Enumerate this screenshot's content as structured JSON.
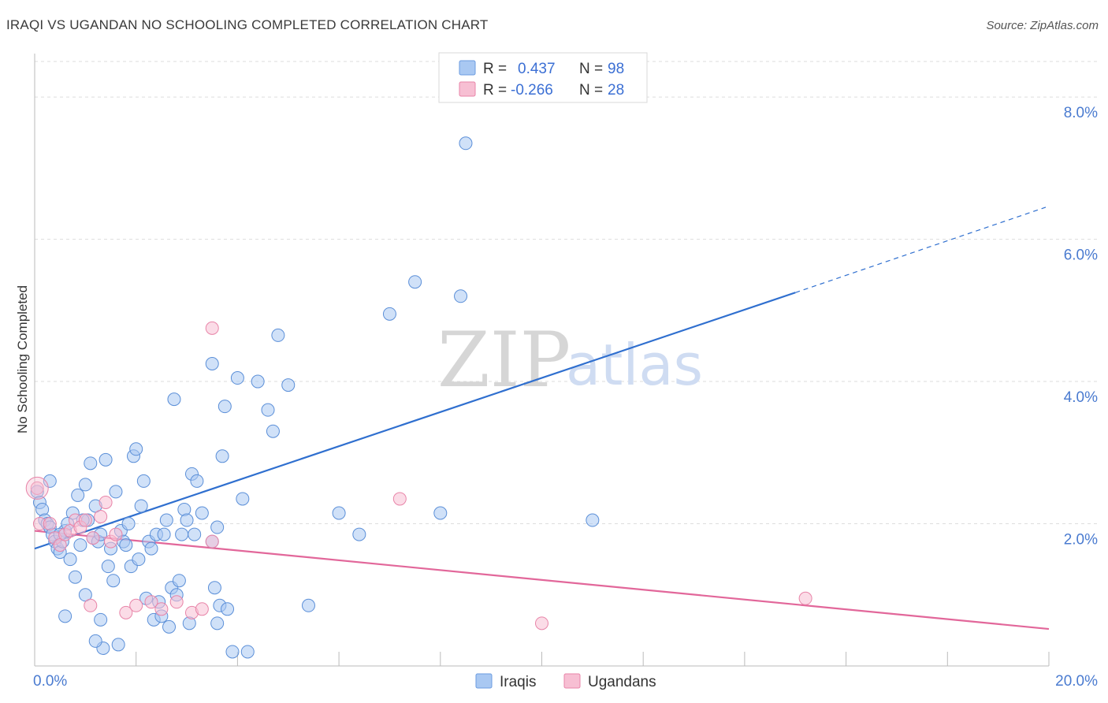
{
  "title": "IRAQI VS UGANDAN NO SCHOOLING COMPLETED CORRELATION CHART",
  "source": "Source: ZipAtlas.com",
  "watermark": {
    "zip": "ZIP",
    "atlas": "atlas"
  },
  "legend": {
    "rows": [
      {
        "r_label": "R =",
        "r_value": "0.437",
        "n_label": "N =",
        "n_value": "98",
        "color": "#a9c8f2",
        "stroke": "#6b9be0"
      },
      {
        "r_label": "R =",
        "r_value": "-0.266",
        "n_label": "N =",
        "n_value": "28",
        "color": "#f7bfd3",
        "stroke": "#e884a8"
      }
    ]
  },
  "bottom_legend": [
    {
      "label": "Iraqis",
      "color": "#a9c8f2",
      "stroke": "#6b9be0"
    },
    {
      "label": "Ugandans",
      "color": "#f7bfd3",
      "stroke": "#e884a8"
    }
  ],
  "chart_data": {
    "type": "scatter",
    "xlabel": "",
    "ylabel": "No Schooling Completed",
    "xlim": [
      0,
      20
    ],
    "ylim": [
      0,
      8.5
    ],
    "x_ticks": [
      {
        "value": 0,
        "label": "0.0%"
      },
      {
        "value": 20,
        "label": "20.0%"
      }
    ],
    "y_ticks": [
      {
        "value": 2,
        "label": "2.0%"
      },
      {
        "value": 4,
        "label": "4.0%"
      },
      {
        "value": 6,
        "label": "6.0%"
      },
      {
        "value": 8,
        "label": "8.0%"
      }
    ],
    "grid": true,
    "series": [
      {
        "name": "Iraqis",
        "color": "#a9c8f2",
        "stroke": "#5b8fd8",
        "trend": {
          "x0": 0,
          "y0": 1.65,
          "x1": 15.0,
          "y1": 5.25,
          "dash_to_x": 20,
          "dash_to_y": 6.45,
          "color": "#2f6fcf"
        },
        "points": [
          [
            0.05,
            2.45
          ],
          [
            0.1,
            2.3
          ],
          [
            0.15,
            2.2
          ],
          [
            0.2,
            2.05
          ],
          [
            0.25,
            2.0
          ],
          [
            0.3,
            1.95
          ],
          [
            0.35,
            1.85
          ],
          [
            0.4,
            1.75
          ],
          [
            0.45,
            1.65
          ],
          [
            0.5,
            1.6
          ],
          [
            0.55,
            1.75
          ],
          [
            0.6,
            1.9
          ],
          [
            0.7,
            1.5
          ],
          [
            0.75,
            2.15
          ],
          [
            0.8,
            1.25
          ],
          [
            0.85,
            2.4
          ],
          [
            0.9,
            1.7
          ],
          [
            1.0,
            2.55
          ],
          [
            1.05,
            2.05
          ],
          [
            1.1,
            2.85
          ],
          [
            1.15,
            1.8
          ],
          [
            1.2,
            2.25
          ],
          [
            1.25,
            1.75
          ],
          [
            1.3,
            1.85
          ],
          [
            1.4,
            2.9
          ],
          [
            1.45,
            1.4
          ],
          [
            1.5,
            1.65
          ],
          [
            1.55,
            1.2
          ],
          [
            1.6,
            2.45
          ],
          [
            1.7,
            1.9
          ],
          [
            1.75,
            1.75
          ],
          [
            1.8,
            1.7
          ],
          [
            1.85,
            2.0
          ],
          [
            1.9,
            1.4
          ],
          [
            1.95,
            2.95
          ],
          [
            2.0,
            3.05
          ],
          [
            2.05,
            1.5
          ],
          [
            2.1,
            2.25
          ],
          [
            2.15,
            2.6
          ],
          [
            2.2,
            0.95
          ],
          [
            2.25,
            1.75
          ],
          [
            2.3,
            1.65
          ],
          [
            2.35,
            0.65
          ],
          [
            2.4,
            1.85
          ],
          [
            2.45,
            0.9
          ],
          [
            2.5,
            0.7
          ],
          [
            2.55,
            1.85
          ],
          [
            2.6,
            2.05
          ],
          [
            2.7,
            1.1
          ],
          [
            2.75,
            3.75
          ],
          [
            2.8,
            1.0
          ],
          [
            2.85,
            1.2
          ],
          [
            2.9,
            1.85
          ],
          [
            2.95,
            2.2
          ],
          [
            3.0,
            2.05
          ],
          [
            3.05,
            0.6
          ],
          [
            3.1,
            2.7
          ],
          [
            3.15,
            1.85
          ],
          [
            3.2,
            2.6
          ],
          [
            3.3,
            2.15
          ],
          [
            3.5,
            1.75
          ],
          [
            3.55,
            1.1
          ],
          [
            3.6,
            1.95
          ],
          [
            3.5,
            4.25
          ],
          [
            3.6,
            0.6
          ],
          [
            3.65,
            0.85
          ],
          [
            3.7,
            2.95
          ],
          [
            3.75,
            3.65
          ],
          [
            3.8,
            0.8
          ],
          [
            3.9,
            0.2
          ],
          [
            4.0,
            4.05
          ],
          [
            4.1,
            2.35
          ],
          [
            4.2,
            0.2
          ],
          [
            4.4,
            4.0
          ],
          [
            4.6,
            3.6
          ],
          [
            4.7,
            3.3
          ],
          [
            4.8,
            4.65
          ],
          [
            5.0,
            3.95
          ],
          [
            5.4,
            0.85
          ],
          [
            6.0,
            2.15
          ],
          [
            6.4,
            1.85
          ],
          [
            7.0,
            4.95
          ],
          [
            7.5,
            5.4
          ],
          [
            8.0,
            2.15
          ],
          [
            8.4,
            5.2
          ],
          [
            8.5,
            7.35
          ],
          [
            11.0,
            2.05
          ],
          [
            0.3,
            2.6
          ],
          [
            0.5,
            1.85
          ],
          [
            0.65,
            2.0
          ],
          [
            0.95,
            2.05
          ],
          [
            1.35,
            0.25
          ],
          [
            1.65,
            0.3
          ],
          [
            2.65,
            0.55
          ],
          [
            1.0,
            1.0
          ],
          [
            1.2,
            0.35
          ],
          [
            0.6,
            0.7
          ],
          [
            1.3,
            0.65
          ]
        ]
      },
      {
        "name": "Ugandans",
        "color": "#f7bfd3",
        "stroke": "#e884a8",
        "trend": {
          "x0": 0,
          "y0": 1.9,
          "x1": 20,
          "y1": 0.52,
          "color": "#e2679a"
        },
        "points": [
          [
            0.05,
            2.5
          ],
          [
            0.1,
            2.0
          ],
          [
            0.3,
            2.0
          ],
          [
            0.4,
            1.8
          ],
          [
            0.5,
            1.7
          ],
          [
            0.6,
            1.85
          ],
          [
            0.7,
            1.9
          ],
          [
            0.8,
            2.05
          ],
          [
            0.9,
            1.95
          ],
          [
            1.0,
            2.05
          ],
          [
            1.1,
            0.85
          ],
          [
            1.15,
            1.8
          ],
          [
            1.3,
            2.1
          ],
          [
            1.4,
            2.3
          ],
          [
            1.5,
            1.75
          ],
          [
            1.6,
            1.85
          ],
          [
            1.8,
            0.75
          ],
          [
            2.0,
            0.85
          ],
          [
            2.3,
            0.9
          ],
          [
            2.5,
            0.8
          ],
          [
            2.8,
            0.9
          ],
          [
            3.1,
            0.75
          ],
          [
            3.3,
            0.8
          ],
          [
            3.5,
            1.75
          ],
          [
            3.5,
            4.75
          ],
          [
            7.2,
            2.35
          ],
          [
            10.0,
            0.6
          ],
          [
            15.2,
            0.95
          ]
        ]
      }
    ]
  }
}
